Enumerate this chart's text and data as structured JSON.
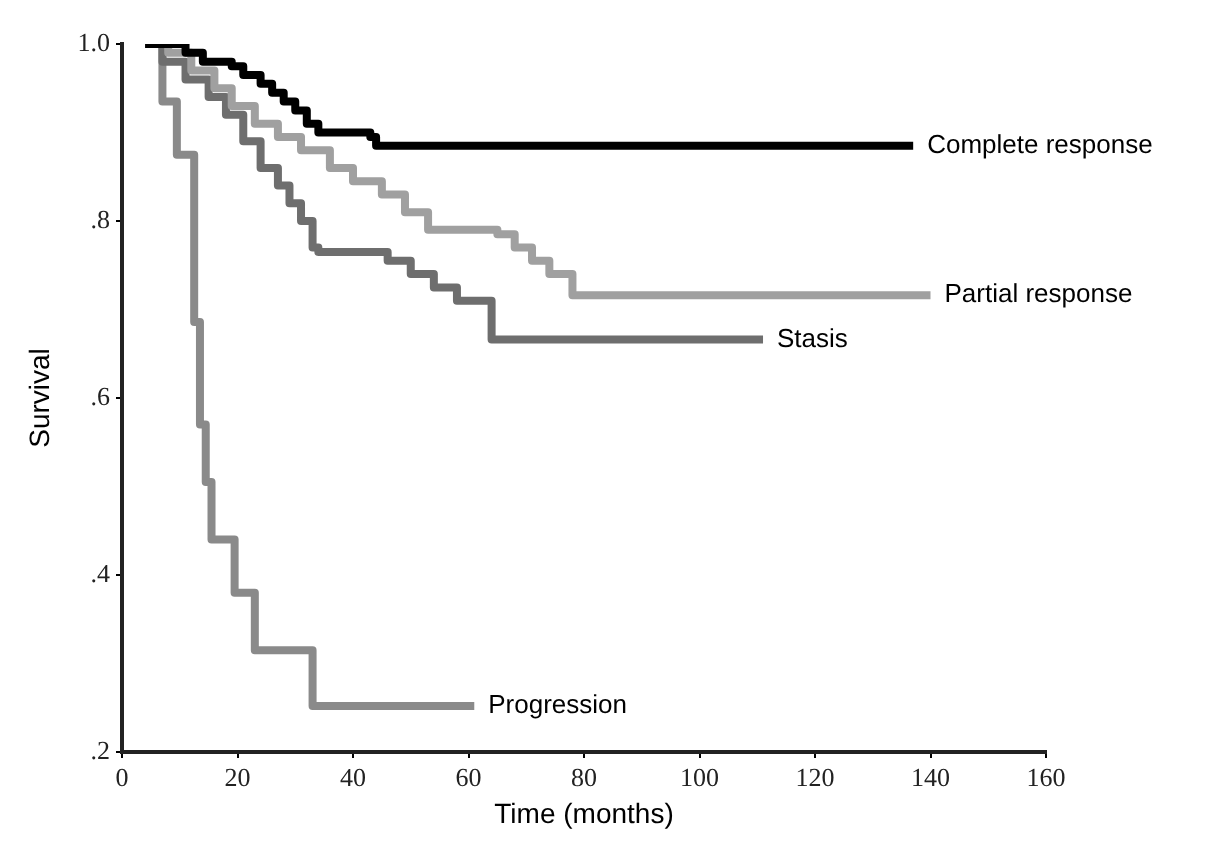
{
  "chart_data": {
    "type": "step",
    "xlabel": "Time (months)",
    "ylabel": "Survival",
    "xlim": [
      0,
      160
    ],
    "xticks": [
      0,
      20,
      40,
      60,
      80,
      100,
      120,
      140,
      160
    ],
    "ylim": [
      0.2,
      1.0
    ],
    "yticks": [
      {
        "value": 0.2,
        "label": ".2"
      },
      {
        "value": 0.4,
        "label": ".4"
      },
      {
        "value": 0.6,
        "label": ".6"
      },
      {
        "value": 0.8,
        "label": ".8"
      },
      {
        "value": 1.0,
        "label": "1.0"
      }
    ],
    "grid": false,
    "legend": false,
    "marker": "none",
    "line_style": "solid",
    "series": [
      {
        "name": "Complete response",
        "color": "#000000",
        "x": [
          4,
          9,
          11,
          14,
          19,
          21,
          24,
          26,
          28,
          30,
          32,
          34,
          43,
          44,
          137
        ],
        "values": [
          1.0,
          1.0,
          0.99,
          0.98,
          0.975,
          0.965,
          0.955,
          0.945,
          0.935,
          0.925,
          0.91,
          0.9,
          0.895,
          0.885,
          0.885
        ]
      },
      {
        "name": "Partial response",
        "color": "#a0a0a0",
        "x": [
          4,
          8,
          12,
          16,
          19,
          23,
          27,
          31,
          36,
          40,
          45,
          49,
          53,
          65,
          68,
          71,
          74,
          78,
          140
        ],
        "values": [
          1.0,
          0.99,
          0.97,
          0.95,
          0.93,
          0.91,
          0.895,
          0.88,
          0.86,
          0.845,
          0.83,
          0.81,
          0.79,
          0.785,
          0.77,
          0.755,
          0.74,
          0.716,
          0.716
        ]
      },
      {
        "name": "Stasis",
        "color": "#6e6e6e",
        "x": [
          4,
          7,
          11,
          15,
          18,
          21,
          24,
          27,
          29,
          31,
          33,
          34,
          46,
          50,
          54,
          58,
          64,
          111
        ],
        "values": [
          1.0,
          0.98,
          0.96,
          0.94,
          0.92,
          0.89,
          0.86,
          0.84,
          0.82,
          0.8,
          0.77,
          0.765,
          0.755,
          0.74,
          0.725,
          0.71,
          0.666,
          0.666
        ]
      },
      {
        "name": "Progression",
        "color": "#8a8a8a",
        "x": [
          4,
          7,
          9.5,
          12.5,
          13.5,
          14.5,
          15.5,
          19.5,
          23,
          33,
          61
        ],
        "values": [
          1.0,
          0.935,
          0.875,
          0.686,
          0.57,
          0.505,
          0.44,
          0.38,
          0.315,
          0.252,
          0.252
        ]
      }
    ]
  }
}
